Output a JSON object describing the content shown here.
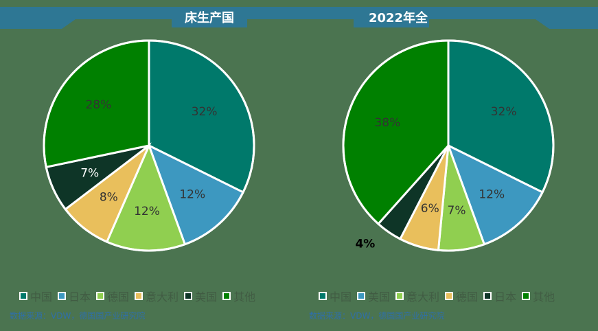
{
  "header": {
    "left_title": "床生产国",
    "right_title": "2022年全"
  },
  "colors": {
    "background": "#4b7450",
    "banner": "#2e7794",
    "slice_stroke": "#ffffff"
  },
  "chart_data": [
    {
      "type": "pie",
      "title": "床生产国",
      "start_angle_deg": 0,
      "direction": "clockwise",
      "categories": [
        "中国",
        "日本",
        "德国",
        "意大利",
        "美国",
        "其他"
      ],
      "values": [
        32,
        12,
        12,
        8,
        7,
        28
      ],
      "labels": [
        "32%",
        "12%",
        "12%",
        "8%",
        "7%",
        "28%"
      ],
      "colors": [
        "#00796b",
        "#3d98c0",
        "#90cf50",
        "#e9bf5c",
        "#0e3527",
        "#008000"
      ],
      "label_colors": [
        "#333333",
        "#333333",
        "#333333",
        "#333333",
        "#ffffff",
        "#333333"
      ],
      "legend": {
        "position": "bottom",
        "items": [
          "中国",
          "日本",
          "德国",
          "意大利",
          "美国",
          "其他"
        ],
        "colors": [
          "#00796b",
          "#3d98c0",
          "#90cf50",
          "#e9bf5c",
          "#0e3527",
          "#008000"
        ]
      },
      "source": "数据来源：VDW，德国国产业研究院"
    },
    {
      "type": "pie",
      "title": "2022年全",
      "start_angle_deg": 0,
      "direction": "clockwise",
      "categories": [
        "中国",
        "美国",
        "意大利",
        "德国",
        "日本",
        "其他"
      ],
      "values": [
        32,
        12,
        7,
        6,
        4,
        38
      ],
      "labels": [
        "32%",
        "12%",
        "7%",
        "6%",
        "4%",
        "38%"
      ],
      "colors": [
        "#00796b",
        "#3d98c0",
        "#90cf50",
        "#e9bf5c",
        "#0e3527",
        "#008000"
      ],
      "label_colors": [
        "#333333",
        "#333333",
        "#333333",
        "#333333",
        "#000000",
        "#333333"
      ],
      "legend": {
        "position": "bottom",
        "items": [
          "中国",
          "美国",
          "意大利",
          "德国",
          "日本",
          "其他"
        ],
        "colors": [
          "#00796b",
          "#3d98c0",
          "#90cf50",
          "#e9bf5c",
          "#0e3527",
          "#008000"
        ]
      },
      "source": "数据来源：VDW，德国国产业研究院"
    }
  ]
}
